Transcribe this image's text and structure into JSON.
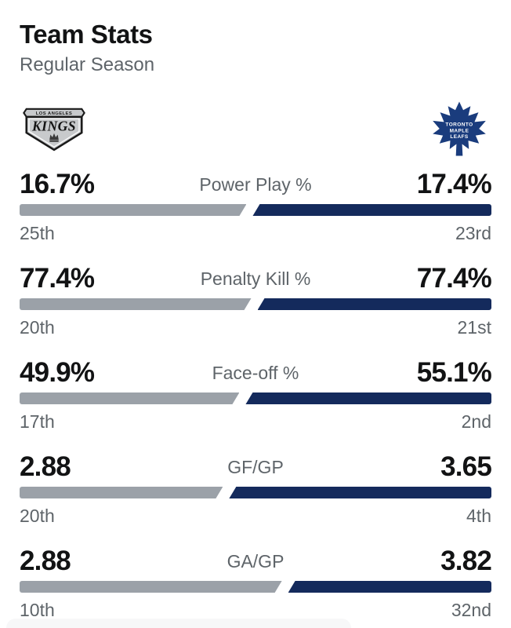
{
  "header": {
    "title": "Team Stats",
    "subtitle": "Regular Season"
  },
  "teams": {
    "away": {
      "name": "Los Angeles Kings",
      "logo_city": "LOS ANGELES",
      "logo_word": "KINGS",
      "bar_color": "#9BA1A8",
      "logo_silver": "#C8CACC",
      "logo_black": "#1A1A1A"
    },
    "home": {
      "name": "Toronto Maple Leafs",
      "logo_line1": "TORONTO",
      "logo_line2": "MAPLE",
      "logo_line3": "LEAFS",
      "bar_color": "#142A5C",
      "leaf_blue": "#1A3C7D"
    }
  },
  "stats": [
    {
      "label": "Power Play %",
      "left_value": "16.7%",
      "right_value": "17.4%",
      "left_rank": "25th",
      "right_rank": "23rd",
      "left_pct": 49.5
    },
    {
      "label": "Penalty Kill %",
      "left_value": "77.4%",
      "right_value": "77.4%",
      "left_rank": "20th",
      "right_rank": "21st",
      "left_pct": 50.5
    },
    {
      "label": "Face-off %",
      "left_value": "49.9%",
      "right_value": "55.1%",
      "left_rank": "17th",
      "right_rank": "2nd",
      "left_pct": 48.0
    },
    {
      "label": "GF/GP",
      "left_value": "2.88",
      "right_value": "3.65",
      "left_rank": "20th",
      "right_rank": "4th",
      "left_pct": 44.5
    },
    {
      "label": "GA/GP",
      "left_value": "2.88",
      "right_value": "3.82",
      "left_rank": "10th",
      "right_rank": "32nd",
      "left_pct": 57.0
    }
  ],
  "colors": {
    "page_bg": "#FFFFFF",
    "value_text": "#121314",
    "muted_text": "#5E6469",
    "bar_away": "#9BA1A8",
    "bar_home": "#142A5C"
  }
}
